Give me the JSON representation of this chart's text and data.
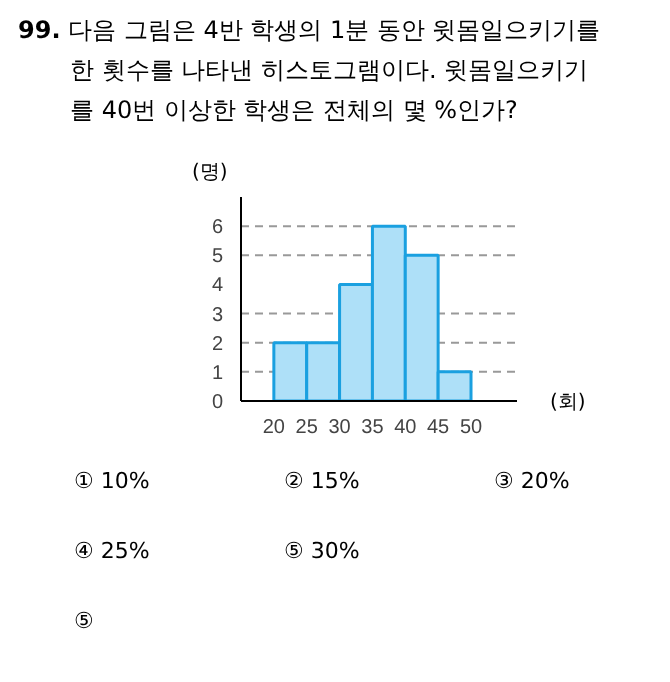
{
  "chart_data": {
    "type": "histogram",
    "title": "99. 다음 그림은 4반 학생의 1분 동안 윗몸일으키기를 한 횟수를 나타낸 히스토그램이다. 윗몸일으키기를 40번 이상한 학생은 전체의 몇 %인가?",
    "xlabel": "(회)",
    "ylabel": "(명)",
    "bins": [
      20,
      25,
      30,
      35,
      40,
      45,
      50
    ],
    "values": [
      2,
      2,
      4,
      6,
      5,
      1
    ],
    "color": "#aee0f8",
    "xlim": [
      15,
      57
    ],
    "ylim": [
      0,
      7
    ],
    "xticks": [
      20,
      25,
      30,
      35,
      40,
      45,
      50
    ],
    "yticks": [
      0,
      1,
      2,
      3,
      4,
      5,
      6
    ],
    "grid": false,
    "ref_lines": [
      {
        "axis": "y",
        "value": 1,
        "line_style": "dashed",
        "color": "#999999"
      },
      {
        "axis": "y",
        "value": 2,
        "line_style": "dashed",
        "color": "#999999"
      },
      {
        "axis": "y",
        "value": 3,
        "line_style": "dashed",
        "color": "#999999"
      },
      {
        "axis": "y",
        "value": 5,
        "line_style": "dashed",
        "color": "#999999"
      },
      {
        "axis": "y",
        "value": 6,
        "line_style": "dashed",
        "color": "#999999"
      }
    ],
    "annotations": [
      "① 10%",
      "② 15%",
      "③ 20%",
      "④ 25%",
      "⑤ 30%",
      "⑤"
    ]
  }
}
